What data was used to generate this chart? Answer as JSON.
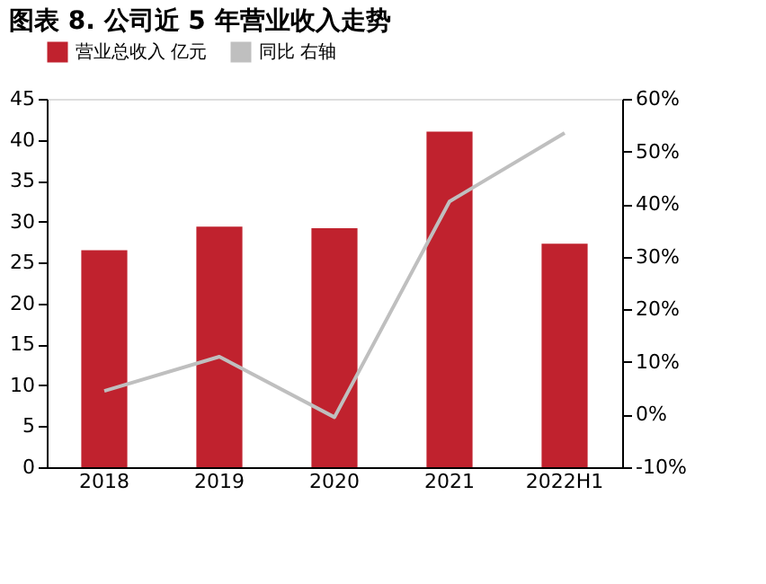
{
  "chart_data": {
    "type": "bar",
    "title": "图表 8.  公司近 5 年营业收入走势",
    "categories": [
      "2018",
      "2019",
      "2020",
      "2021",
      "2022H1"
    ],
    "series": [
      {
        "name": "营业总收入 亿元",
        "color": "#c0222e",
        "values": [
          26.5,
          29.4,
          29.2,
          41.0,
          27.3
        ]
      },
      {
        "name": "同比 右轴",
        "type": "line",
        "axis": "y2",
        "color": "#bfbfbf",
        "values": [
          4.5,
          11.0,
          -0.5,
          40.5,
          53.5
        ]
      }
    ],
    "ylim": [
      0,
      45
    ],
    "yticks": [
      0,
      5,
      10,
      15,
      20,
      25,
      30,
      35,
      40,
      45
    ],
    "y2lim": [
      -10,
      60
    ],
    "y2ticks": [
      {
        "value": -10,
        "label": "-10%"
      },
      {
        "value": 0,
        "label": "0%"
      },
      {
        "value": 10,
        "label": "10%"
      },
      {
        "value": 20,
        "label": "20%"
      },
      {
        "value": 30,
        "label": "30%"
      },
      {
        "value": 40,
        "label": "40%"
      },
      {
        "value": 50,
        "label": "50%"
      },
      {
        "value": 60,
        "label": "60%"
      }
    ],
    "grid": false,
    "legend": "top",
    "marker": "none",
    "line_style": "solid"
  }
}
